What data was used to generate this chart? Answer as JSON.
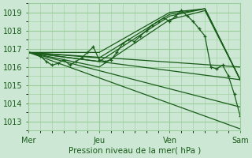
{
  "xlabel": "Pression niveau de la mer( hPa )",
  "background_color": "#cce8d4",
  "grid_color": "#99cc99",
  "line_color": "#1a5c1a",
  "xlim": [
    0,
    72
  ],
  "ylim": [
    1012.5,
    1019.5
  ],
  "yticks": [
    1013,
    1014,
    1015,
    1016,
    1017,
    1018,
    1019
  ],
  "xtick_positions": [
    0,
    24,
    48,
    72
  ],
  "xtick_labels": [
    "Mer",
    "Jeu",
    "Ven",
    "Sam"
  ],
  "series": [
    {
      "x": [
        0,
        72
      ],
      "y": [
        1016.8,
        1016.0
      ],
      "marker": false
    },
    {
      "x": [
        0,
        72
      ],
      "y": [
        1016.8,
        1015.3
      ],
      "marker": false
    },
    {
      "x": [
        0,
        72
      ],
      "y": [
        1016.8,
        1013.8
      ],
      "marker": false
    },
    {
      "x": [
        0,
        72
      ],
      "y": [
        1016.8,
        1012.6
      ],
      "marker": false
    },
    {
      "x": [
        0,
        24,
        48,
        60,
        72
      ],
      "y": [
        1016.8,
        1016.0,
        1018.6,
        1019.1,
        1015.3
      ],
      "marker": false
    },
    {
      "x": [
        0,
        24,
        48,
        60,
        72
      ],
      "y": [
        1016.8,
        1016.3,
        1018.8,
        1019.2,
        1015.3
      ],
      "marker": false
    },
    {
      "x": [
        0,
        24,
        48,
        60,
        72
      ],
      "y": [
        1016.8,
        1016.5,
        1018.9,
        1019.2,
        1015.3
      ],
      "marker": false
    },
    {
      "x": [
        0,
        24,
        48,
        60,
        72
      ],
      "y": [
        1016.8,
        1016.8,
        1019.0,
        1019.2,
        1015.3
      ],
      "marker": false
    },
    {
      "x": [
        0,
        4,
        6,
        8,
        10,
        12,
        14,
        16,
        18,
        20,
        22,
        24,
        26,
        28,
        30,
        32,
        34,
        36,
        38,
        40,
        42,
        44,
        46,
        48,
        50,
        52,
        54,
        56,
        58,
        60,
        62,
        64,
        66,
        68,
        70,
        72
      ],
      "y": [
        1016.8,
        1016.6,
        1016.3,
        1016.1,
        1016.2,
        1016.4,
        1016.1,
        1016.3,
        1016.5,
        1016.8,
        1017.1,
        1016.4,
        1016.3,
        1016.4,
        1016.8,
        1017.3,
        1017.5,
        1017.4,
        1017.7,
        1018.0,
        1018.3,
        1018.5,
        1018.7,
        1018.5,
        1018.8,
        1019.1,
        1018.8,
        1018.5,
        1018.1,
        1017.7,
        1016.0,
        1015.9,
        1016.1,
        1015.5,
        1014.5,
        1013.3
      ],
      "marker": true
    }
  ]
}
